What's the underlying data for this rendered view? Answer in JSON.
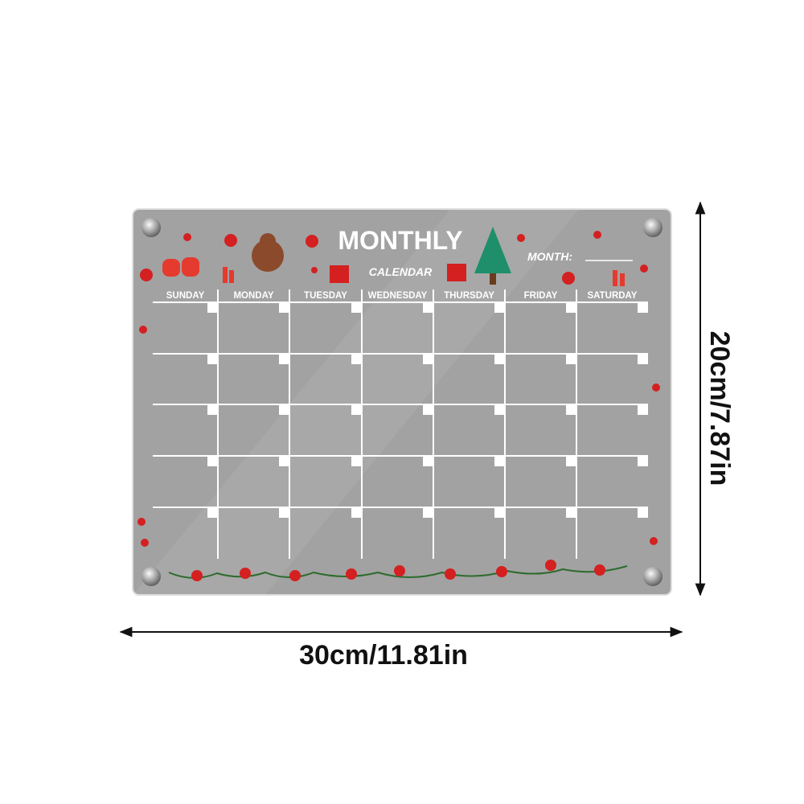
{
  "board": {
    "title": "MONTHLY",
    "subtitle": "CALENDAR",
    "month_label": "MONTH:",
    "days": [
      "SUNDAY",
      "MONDAY",
      "TUESDAY",
      "WEDNESDAY",
      "THURSDAY",
      "FRIDAY",
      "SATURDAY"
    ]
  },
  "dimensions": {
    "width": "30cm/11.81in",
    "height": "20cm/7.87in"
  }
}
